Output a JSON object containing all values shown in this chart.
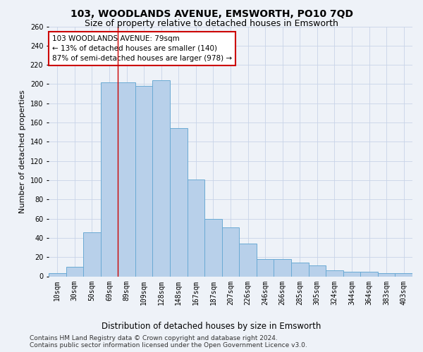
{
  "title": "103, WOODLANDS AVENUE, EMSWORTH, PO10 7QD",
  "subtitle": "Size of property relative to detached houses in Emsworth",
  "xlabel": "Distribution of detached houses by size in Emsworth",
  "ylabel": "Number of detached properties",
  "categories": [
    "10sqm",
    "30sqm",
    "50sqm",
    "69sqm",
    "89sqm",
    "109sqm",
    "128sqm",
    "148sqm",
    "167sqm",
    "187sqm",
    "207sqm",
    "226sqm",
    "246sqm",
    "266sqm",
    "285sqm",
    "305sqm",
    "324sqm",
    "344sqm",
    "364sqm",
    "383sqm",
    "403sqm"
  ],
  "values": [
    3,
    10,
    46,
    202,
    202,
    198,
    204,
    154,
    101,
    60,
    51,
    34,
    18,
    18,
    14,
    11,
    6,
    5,
    5,
    3,
    3
  ],
  "bar_color": "#b8d0ea",
  "bar_edge_color": "#6aaad4",
  "grid_color": "#c8d4e8",
  "background_color": "#eef2f8",
  "annotation_box_text": "103 WOODLANDS AVENUE: 79sqm\n← 13% of detached houses are smaller (140)\n87% of semi-detached houses are larger (978) →",
  "annotation_box_color": "#ffffff",
  "annotation_box_edge_color": "#cc0000",
  "vline_x": 3.5,
  "vline_color": "#cc0000",
  "ylim": [
    0,
    260
  ],
  "yticks": [
    0,
    20,
    40,
    60,
    80,
    100,
    120,
    140,
    160,
    180,
    200,
    220,
    240,
    260
  ],
  "footer_line1": "Contains HM Land Registry data © Crown copyright and database right 2024.",
  "footer_line2": "Contains public sector information licensed under the Open Government Licence v3.0.",
  "title_fontsize": 10,
  "subtitle_fontsize": 9,
  "axis_label_fontsize": 8.5,
  "tick_fontsize": 7,
  "annotation_fontsize": 7.5,
  "footer_fontsize": 6.5,
  "ylabel_fontsize": 8
}
